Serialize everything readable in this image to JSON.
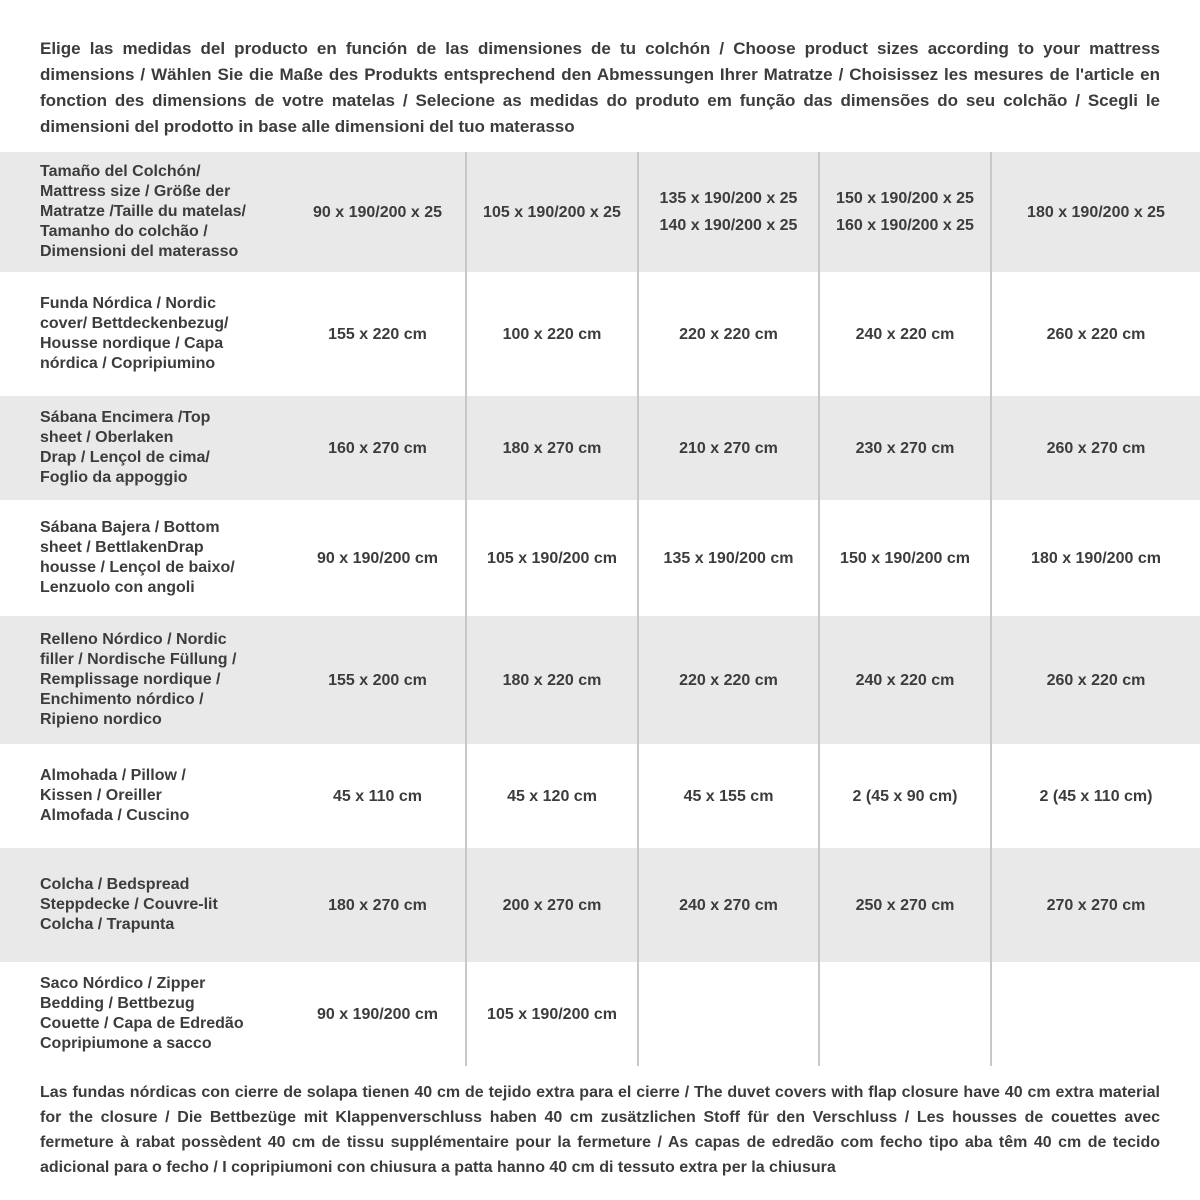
{
  "intro": "Elige las medidas del producto en función de las dimensiones de tu colchón / Choose product sizes according to your mattress dimensions / Wählen Sie die Maße des Produkts entsprechend den Abmessungen Ihrer Matratze / Choisissez les mesures de l'article en fonction des dimensions de votre matelas / Selecione as medidas do produto em função das dimensões do seu colchão / Scegli le dimensioni del prodotto in base alle dimensioni del tuo materasso",
  "colors": {
    "band": "#e9e9e9",
    "band_alt": "#ffffff",
    "divider": "#c8c8c8",
    "text": "#3c3c3c"
  },
  "table": {
    "rows": [
      {
        "label": "Tamaño del Colchón/\nMattress size / Größe der\nMatratze /Taille du matelas/\nTamanho do colchão /\nDimensioni del materasso",
        "values": [
          "90 x 190/200 x 25",
          "105 x 190/200 x 25",
          "135 x 190/200 x 25\n140 x 190/200 x 25",
          "150 x 190/200 x 25\n160 x 190/200 x 25",
          "180 x 190/200 x 25"
        ]
      },
      {
        "label": "Funda Nórdica /  Nordic\ncover/ Bettdeckenbezug/\nHousse nordique  / Capa\nnórdica / Copripiumino",
        "values": [
          "155 x 220 cm",
          "100 x 220 cm",
          "220 x 220 cm",
          "240 x 220 cm",
          "260 x 220 cm"
        ]
      },
      {
        "label": "Sábana Encimera /Top\nsheet / Oberlaken\nDrap / Lençol de cima/\nFoglio da appoggio",
        "values": [
          "160 x 270 cm",
          "180 x 270 cm",
          "210 x 270 cm",
          "230 x 270 cm",
          "260 x 270 cm"
        ]
      },
      {
        "label": "Sábana Bajera / Bottom\nsheet / BettlakenDrap\nhousse / Lençol de baixo/\nLenzuolo con angoli",
        "values": [
          "90 x 190/200 cm",
          "105 x 190/200 cm",
          "135 x 190/200 cm",
          "150 x 190/200 cm",
          "180 x 190/200 cm"
        ]
      },
      {
        "label": "Relleno Nórdico / Nordic\nfiller / Nordische Füllung /\nRemplissage nordique /\nEnchimento nórdico /\nRipieno nordico",
        "values": [
          "155 x 200 cm",
          "180 x 220 cm",
          "220 x 220 cm",
          "240 x 220 cm",
          "260 x 220 cm"
        ]
      },
      {
        "label": "Almohada  / Pillow /\nKissen / Oreiller\nAlmofada / Cuscino",
        "values": [
          "45 x 110 cm",
          "45 x 120 cm",
          "45 x 155 cm",
          "2 (45 x 90 cm)",
          "2 (45 x 110 cm)"
        ]
      },
      {
        "label": "Colcha / Bedspread\nSteppdecke / Couvre-lit\nColcha / Trapunta",
        "values": [
          "180 x 270 cm",
          "200 x 270 cm",
          "240 x 270 cm",
          "250 x 270 cm",
          "270 x 270 cm"
        ]
      },
      {
        "label": "Saco Nórdico / Zipper\nBedding / Bettbezug\nCouette  / Capa de Edredão\nCopripiumone a sacco",
        "values": [
          "90 x 190/200 cm",
          "105 x 190/200 cm",
          "",
          "",
          ""
        ]
      }
    ]
  },
  "footnote": "Las fundas nórdicas con cierre de solapa tienen 40 cm de tejido extra para el cierre  / The duvet covers with flap closure have 40 cm extra material for the closure / Die Bettbezüge mit Klappenverschluss haben 40 cm zusätzlichen Stoff für den Verschluss / Les housses de couettes avec fermeture à rabat possèdent 40 cm de tissu supplémentaire pour la fermeture / As capas de edredão com fecho tipo aba têm 40 cm de tecido adicional para o fecho / I copripiumoni con chiusura a patta hanno 40 cm di tessuto extra per la chiusura"
}
